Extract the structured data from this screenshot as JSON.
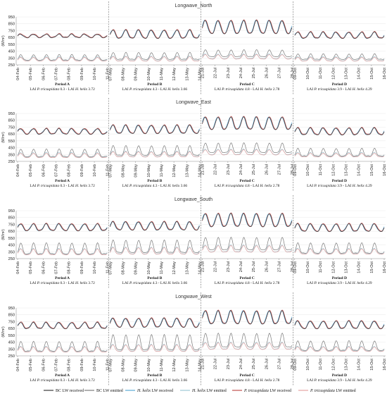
{
  "legend": [
    {
      "name": "BC LW received",
      "color": "#3a3a3a",
      "italic_prefix": ""
    },
    {
      "name": "BC LW emitted",
      "color": "#7a7a7a",
      "italic_prefix": ""
    },
    {
      "name": "LW received",
      "color": "#5aa9d6",
      "italic_prefix": "H. helix"
    },
    {
      "name": "LW emitted",
      "color": "#9cc7d4",
      "italic_prefix": "H. helix"
    },
    {
      "name": "LW received",
      "color": "#c0504d",
      "italic_prefix": "P. tricuspidata"
    },
    {
      "name": "LW emitted",
      "color": "#e6a3a1",
      "italic_prefix": "P. tricuspidata"
    }
  ],
  "chart_data": [
    {
      "type": "line",
      "title": "Longwave_North",
      "ylabel": "(W/m²)",
      "y_ticks": [
        250,
        350,
        450,
        550,
        650,
        750,
        850,
        950
      ],
      "ylim": [
        250,
        950
      ],
      "periods": [
        {
          "label": "Period A",
          "lai": [
            "LAI ",
            "P. tricuspidata",
            " 0.3 - LAI ",
            "H. helix",
            " 3.72"
          ],
          "dates": [
            "04-Feb",
            "05-Feb",
            "06-Feb",
            "07-Feb",
            "08-Feb",
            "09-Feb",
            "10-Feb",
            "11-Feb"
          ]
        },
        {
          "label": "Period B",
          "lai": [
            "LAI ",
            "P. tricuspidata",
            " 4.3 - LAI ",
            "H. helix",
            " 3.66"
          ],
          "dates": [
            "07-May",
            "08-May",
            "09-May",
            "10-May",
            "11-May",
            "12-May",
            "13-May",
            "14-May"
          ]
        },
        {
          "label": "Period C",
          "lai": [
            "LAI ",
            "P. tricuspidata",
            " 4.8 - LAI ",
            "H. helix",
            " 2.78"
          ],
          "dates": [
            "21-Jul",
            "22-Jul",
            "23-Jul",
            "24-Jul",
            "25-Jul",
            "26-Jul",
            "27-Jul",
            "28-Jul"
          ]
        },
        {
          "label": "Period D",
          "lai": [
            "LAI ",
            "P. tricuspidata",
            " 3.9 - LAI ",
            "H. helix",
            " 4.29"
          ],
          "dates": [
            "09-Oct",
            "10-Oct",
            "11-Oct",
            "12-Oct",
            "13-Oct",
            "14-Oct",
            "15-Oct",
            "16-Oct"
          ]
        }
      ],
      "series_levels": {
        "received": [
          [
            650,
            700
          ],
          [
            640,
            760
          ],
          [
            710,
            900
          ],
          [
            640,
            730
          ]
        ],
        "emitted_bc": [
          [
            320,
            400
          ],
          [
            330,
            430
          ],
          [
            370,
            470
          ],
          [
            330,
            410
          ]
        ],
        "emitted_veg": [
          [
            310,
            370
          ],
          [
            310,
            380
          ],
          [
            340,
            410
          ],
          [
            310,
            370
          ]
        ]
      }
    },
    {
      "type": "line",
      "title": "Longwave_East",
      "ylabel": "(W/m²)",
      "y_ticks": [
        250,
        350,
        450,
        550,
        650,
        750,
        850,
        950
      ],
      "ylim": [
        250,
        950
      ],
      "periods": [
        {
          "label": "Period A",
          "lai": [
            "LAI ",
            "P. tricuspidata",
            " 0.3 - LAI ",
            "H. helix",
            " 3.72"
          ],
          "dates": [
            "04-Feb",
            "05-Feb",
            "06-Feb",
            "07-Feb",
            "08-Feb",
            "09-Feb",
            "10-Feb",
            "11-Feb"
          ]
        },
        {
          "label": "Period B",
          "lai": [
            "LAI ",
            "P. tricuspidata",
            " 4.3 - LAI ",
            "H. helix",
            " 3.66"
          ],
          "dates": [
            "07-May",
            "08-May",
            "09-May",
            "10-May",
            "11-May",
            "12-May",
            "13-May",
            "14-May"
          ]
        },
        {
          "label": "Period C",
          "lai": [
            "LAI ",
            "P. tricuspidata",
            " 4.8 - LAI ",
            "H. helix",
            " 2.78"
          ],
          "dates": [
            "21-Jul",
            "22-Jul",
            "23-Jul",
            "24-Jul",
            "25-Jul",
            "26-Jul",
            "27-Jul",
            "28-Jul"
          ]
        },
        {
          "label": "Period D",
          "lai": [
            "LAI ",
            "P. tricuspidata",
            " 3.9 - LAI ",
            "H. helix",
            " 4.29"
          ],
          "dates": [
            "09-Oct",
            "10-Oct",
            "11-Oct",
            "12-Oct",
            "13-Oct",
            "14-Oct",
            "15-Oct",
            "16-Oct"
          ]
        }
      ],
      "series_levels": {
        "received": [
          [
            650,
            730
          ],
          [
            660,
            780
          ],
          [
            720,
            900
          ],
          [
            640,
            740
          ]
        ],
        "emitted_bc": [
          [
            320,
            430
          ],
          [
            340,
            480
          ],
          [
            380,
            520
          ],
          [
            330,
            440
          ]
        ],
        "emitted_veg": [
          [
            310,
            380
          ],
          [
            320,
            400
          ],
          [
            350,
            430
          ],
          [
            320,
            380
          ]
        ]
      }
    },
    {
      "type": "line",
      "title": "Longwave_South",
      "ylabel": "(W/m²)",
      "y_ticks": [
        250,
        350,
        450,
        550,
        650,
        750,
        850,
        950
      ],
      "ylim": [
        250,
        950
      ],
      "periods": [
        {
          "label": "Period A",
          "lai": [
            "LAI ",
            "P. tricuspidata",
            " 0.3 - LAI ",
            "H. helix",
            " 3.72"
          ],
          "dates": [
            "04-Feb",
            "05-Feb",
            "06-Feb",
            "07-Feb",
            "08-Feb",
            "09-Feb",
            "10-Feb",
            "11-Feb"
          ]
        },
        {
          "label": "Period B",
          "lai": [
            "LAI ",
            "P. tricuspidata",
            " 4.3 - LAI ",
            "H. helix",
            " 3.66"
          ],
          "dates": [
            "07-May",
            "08-May",
            "09-May",
            "10-May",
            "11-May",
            "12-May",
            "13-May",
            "14-May"
          ]
        },
        {
          "label": "Period C",
          "lai": [
            "LAI ",
            "P. tricuspidata",
            " 4.8 - LAI ",
            "H. helix",
            " 2.78"
          ],
          "dates": [
            "21-Jul",
            "22-Jul",
            "23-Jul",
            "24-Jul",
            "25-Jul",
            "26-Jul",
            "27-Jul",
            "28-Jul"
          ]
        },
        {
          "label": "Period D",
          "lai": [
            "LAI ",
            "P. tricuspidata",
            " 3.9 - LAI ",
            "H. helix",
            " 4.29"
          ],
          "dates": [
            "09-Oct",
            "10-Oct",
            "11-Oct",
            "12-Oct",
            "13-Oct",
            "14-Oct",
            "15-Oct",
            "16-Oct"
          ]
        }
      ],
      "series_levels": {
        "received": [
          [
            660,
            760
          ],
          [
            670,
            790
          ],
          [
            720,
            910
          ],
          [
            650,
            760
          ]
        ],
        "emitted_bc": [
          [
            320,
            480
          ],
          [
            340,
            520
          ],
          [
            380,
            560
          ],
          [
            330,
            480
          ]
        ],
        "emitted_veg": [
          [
            310,
            400
          ],
          [
            320,
            420
          ],
          [
            350,
            450
          ],
          [
            320,
            400
          ]
        ]
      }
    },
    {
      "type": "line",
      "title": "Longwave_West",
      "ylabel": "(W/m²)",
      "y_ticks": [
        250,
        350,
        450,
        550,
        650,
        750,
        850,
        950
      ],
      "ylim": [
        250,
        950
      ],
      "periods": [
        {
          "label": "Period A",
          "lai": [
            "LAI ",
            "P. tricuspidata",
            " 0.3 - LAI ",
            "H. helix",
            " 3.72"
          ],
          "dates": [
            "04-Feb",
            "05-Feb",
            "06-Feb",
            "07-Feb",
            "08-Feb",
            "09-Feb",
            "10-Feb",
            "11-Feb"
          ]
        },
        {
          "label": "Period B",
          "lai": [
            "LAI ",
            "P. tricuspidata",
            " 4.3 - LAI ",
            "H. helix",
            " 3.66"
          ],
          "dates": [
            "07-May",
            "08-May",
            "09-May",
            "10-May",
            "11-May",
            "12-May",
            "13-May",
            "14-May"
          ]
        },
        {
          "label": "Period C",
          "lai": [
            "LAI ",
            "P. tricuspidata",
            " 4.8 - LAI ",
            "H. helix",
            " 2.78"
          ],
          "dates": [
            "21-Jul",
            "22-Jul",
            "23-Jul",
            "24-Jul",
            "25-Jul",
            "26-Jul",
            "27-Jul",
            "28-Jul"
          ]
        },
        {
          "label": "Period D",
          "lai": [
            "LAI ",
            "P. tricuspidata",
            " 3.9 - LAI ",
            "H. helix",
            " 4.29"
          ],
          "dates": [
            "09-Oct",
            "10-Oct",
            "11-Oct",
            "12-Oct",
            "13-Oct",
            "14-Oct",
            "15-Oct",
            "16-Oct"
          ]
        }
      ],
      "series_levels": {
        "received": [
          [
            650,
            740
          ],
          [
            670,
            800
          ],
          [
            720,
            910
          ],
          [
            650,
            760
          ]
        ],
        "emitted_bc": [
          [
            320,
            460
          ],
          [
            340,
            560
          ],
          [
            380,
            580
          ],
          [
            330,
            470
          ]
        ],
        "emitted_veg": [
          [
            310,
            390
          ],
          [
            320,
            420
          ],
          [
            350,
            450
          ],
          [
            320,
            390
          ]
        ]
      }
    }
  ]
}
